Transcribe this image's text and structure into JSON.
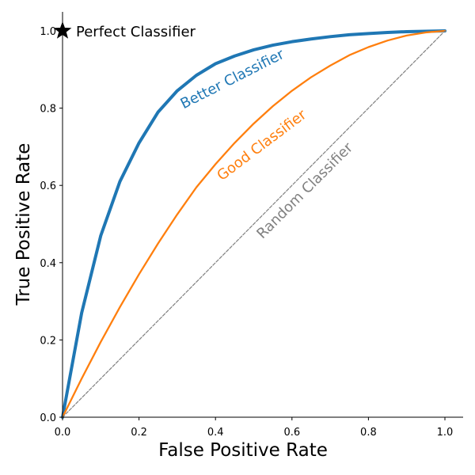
{
  "chart_data": {
    "type": "line",
    "title": "",
    "xlabel": "False Positive Rate",
    "ylabel": "True Positive Rate",
    "xlim": [
      -0.0,
      1.05
    ],
    "ylim": [
      0.0,
      1.05
    ],
    "xticks": [
      "0.0",
      "0.2",
      "0.4",
      "0.6",
      "0.8",
      "1.0"
    ],
    "yticks": [
      "0.0",
      "0.2",
      "0.4",
      "0.6",
      "0.8",
      "1.0"
    ],
    "grid": false,
    "legend": "none",
    "series": [
      {
        "name": "Better Classifier",
        "color": "#1f77b4",
        "x": [
          0.0,
          0.05,
          0.1,
          0.15,
          0.2,
          0.25,
          0.3,
          0.35,
          0.4,
          0.45,
          0.5,
          0.55,
          0.6,
          0.65,
          0.7,
          0.75,
          0.8,
          0.85,
          0.9,
          0.95,
          1.0
        ],
        "y": [
          0.0,
          0.27,
          0.47,
          0.61,
          0.71,
          0.79,
          0.845,
          0.885,
          0.915,
          0.935,
          0.951,
          0.963,
          0.972,
          0.979,
          0.985,
          0.99,
          0.993,
          0.996,
          0.998,
          0.999,
          1.0
        ]
      },
      {
        "name": "Good Classifier",
        "color": "#ff7f0e",
        "x": [
          0.0,
          0.05,
          0.1,
          0.15,
          0.2,
          0.25,
          0.3,
          0.35,
          0.4,
          0.45,
          0.5,
          0.55,
          0.6,
          0.65,
          0.7,
          0.75,
          0.8,
          0.85,
          0.9,
          0.95,
          1.0
        ],
        "y": [
          0.0,
          0.1,
          0.195,
          0.285,
          0.37,
          0.45,
          0.525,
          0.595,
          0.655,
          0.71,
          0.76,
          0.805,
          0.845,
          0.88,
          0.91,
          0.937,
          0.958,
          0.975,
          0.988,
          0.996,
          1.0
        ]
      },
      {
        "name": "Random Classifier",
        "color": "#808080",
        "dashed": true,
        "x": [
          0.0,
          1.0
        ],
        "y": [
          0.0,
          1.0
        ]
      }
    ],
    "annotations": [
      {
        "text": "Perfect Classifier",
        "x": 0.0,
        "y": 1.0,
        "marker": "star",
        "color": "#000000"
      },
      {
        "text": "Better Classifier",
        "color": "#1f77b4"
      },
      {
        "text": "Good Classifier",
        "color": "#ff7f0e"
      },
      {
        "text": "Random Classifier",
        "color": "#808080"
      }
    ]
  }
}
